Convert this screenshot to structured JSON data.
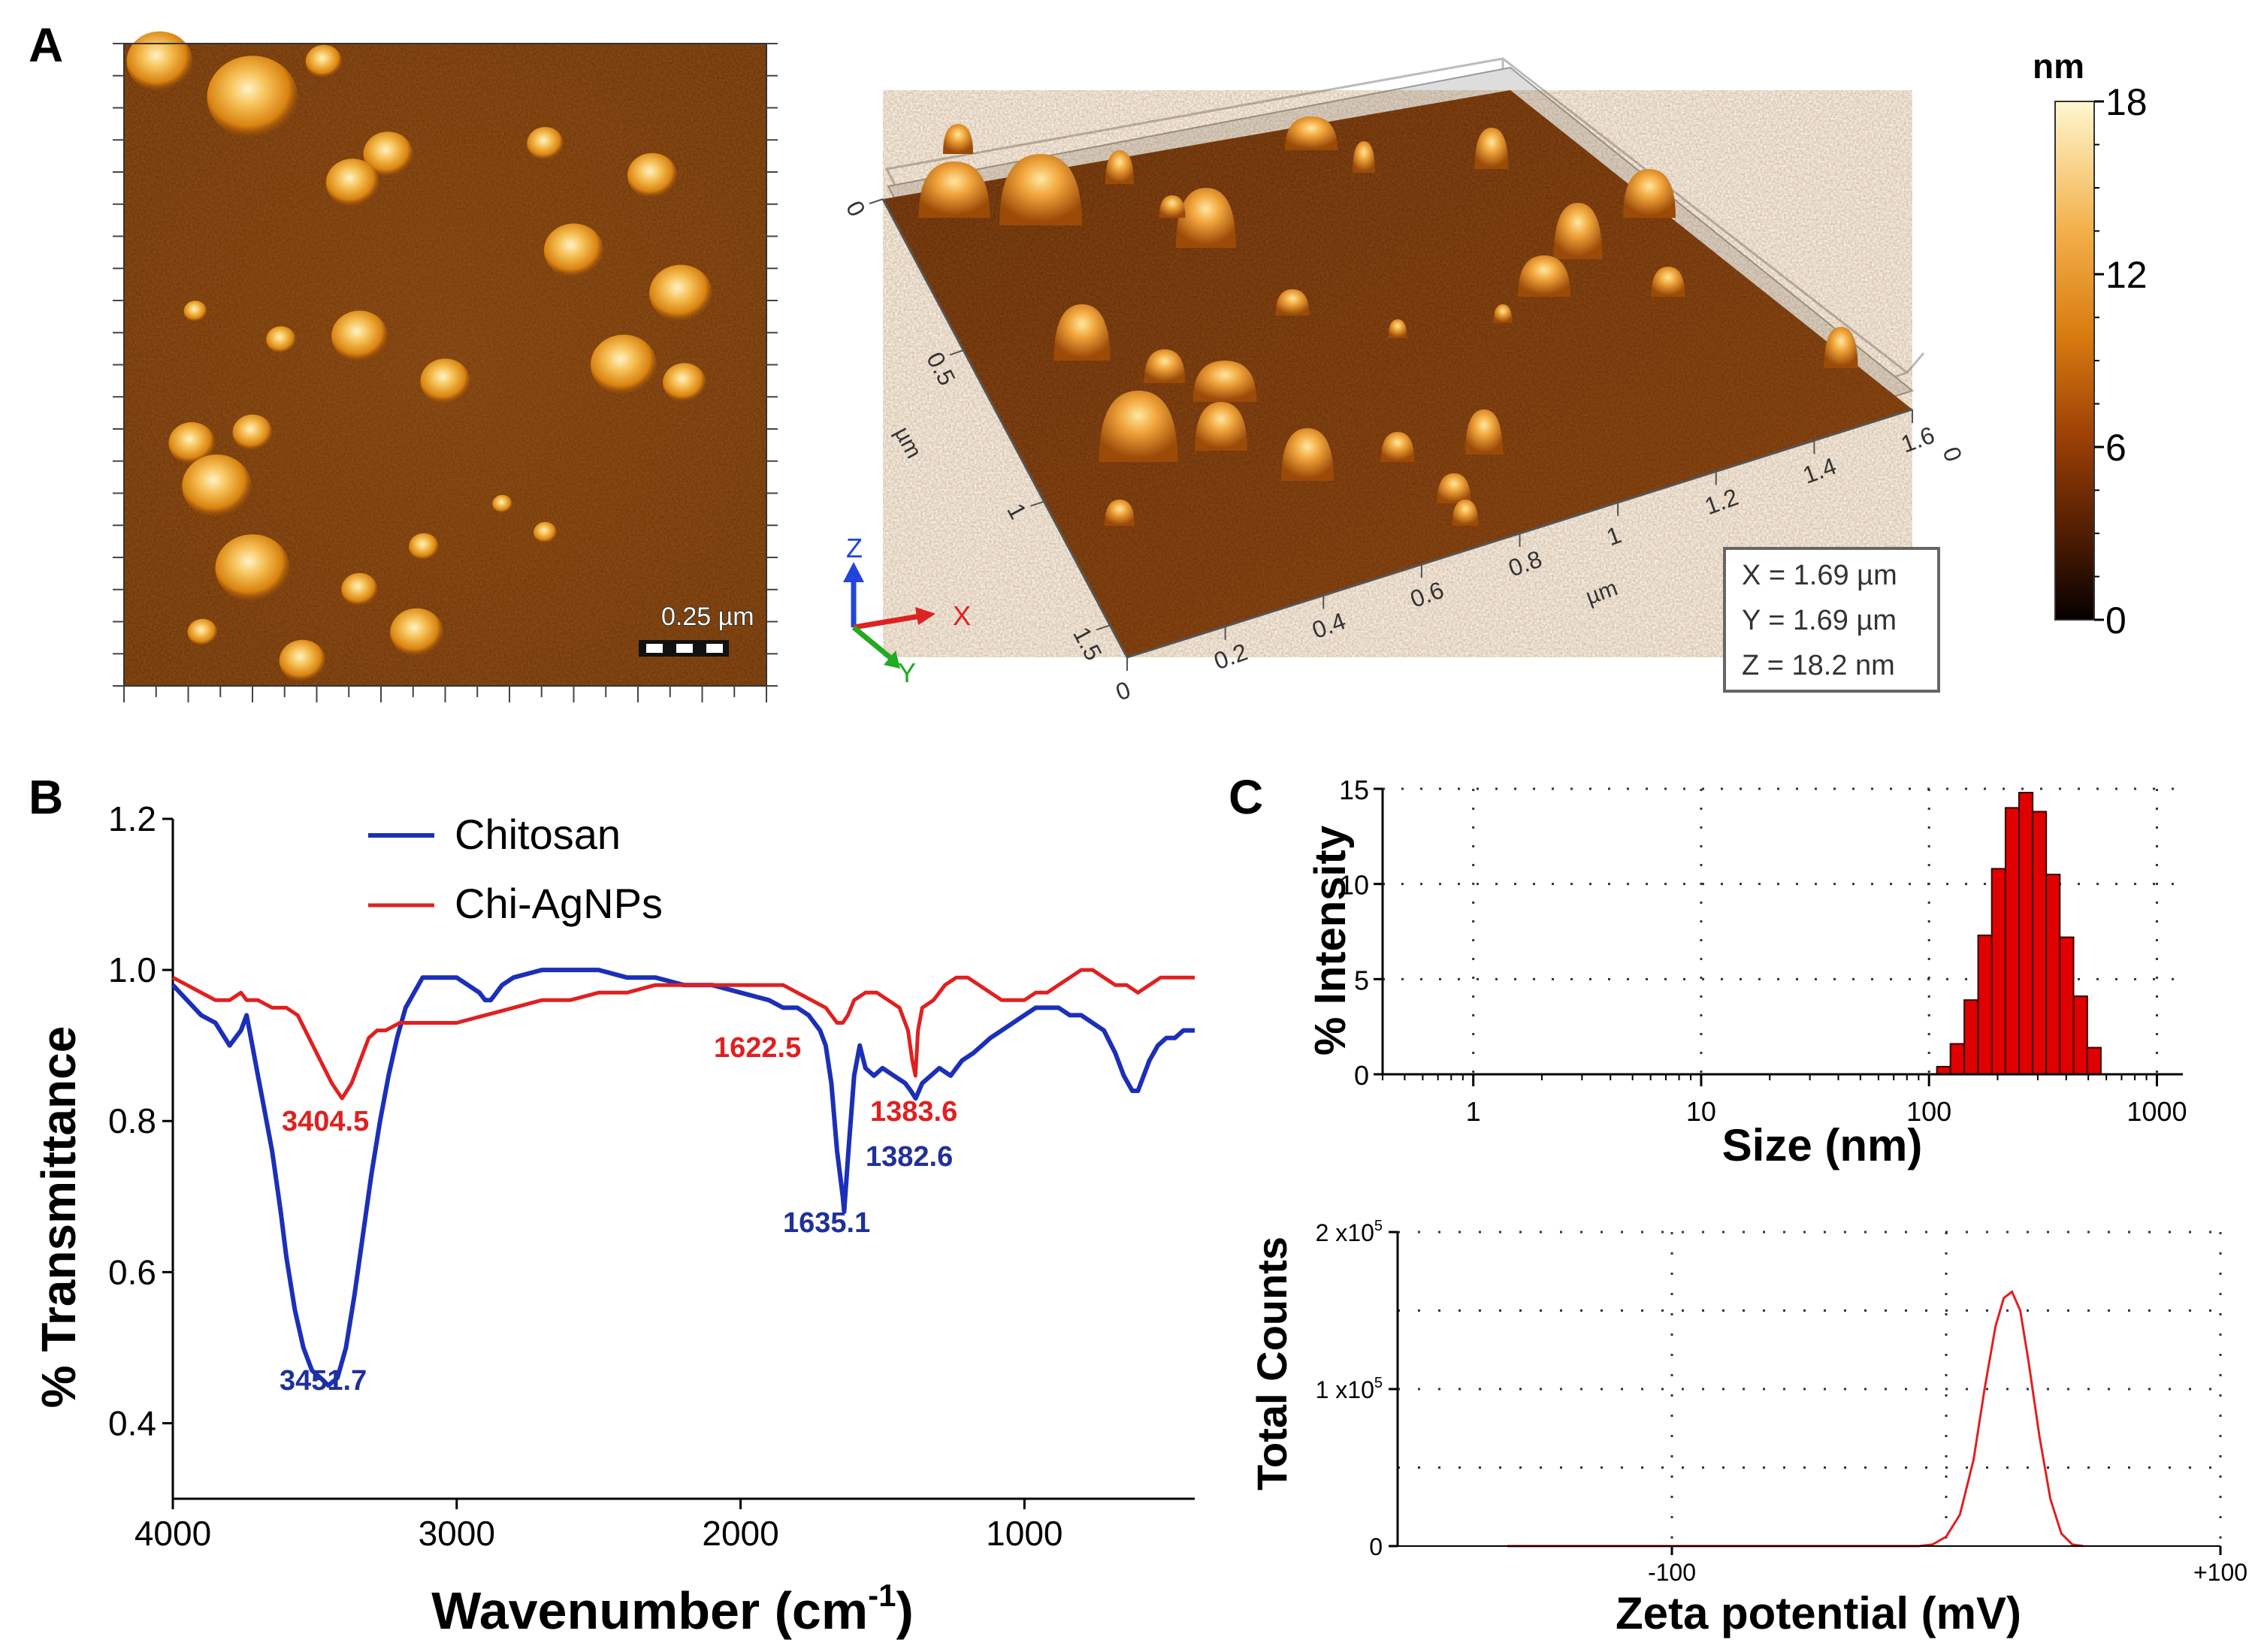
{
  "panels": {
    "a": "A",
    "b": "B",
    "c": "C"
  },
  "afm": {
    "scale_label": "0.25 µm",
    "surface_x_unit": "µm",
    "surface_y_unit": "µm",
    "x_ticks": [
      "0",
      "0.2",
      "0.4",
      "0.6",
      "0.8",
      "1",
      "1.2",
      "1.4",
      "1.6"
    ],
    "y_ticks": [
      "0",
      "0.5",
      "1",
      "1.5"
    ],
    "z_end_tick": "0",
    "axes_labels": [
      "Z",
      "X",
      "Y"
    ],
    "dims": [
      "X = 1.69 µm",
      "Y = 1.69 µm",
      "Z = 18.2 nm"
    ],
    "colorbar": {
      "unit": "nm",
      "ticks": [
        "0",
        "6",
        "12",
        "18"
      ],
      "range": [
        0,
        18
      ]
    }
  },
  "ftir": {
    "type": "line",
    "xlabel_main": "Wavenumber (cm",
    "xlabel_sup": "-1",
    "xlabel_end": ")",
    "ylabel": "% Transmittance",
    "xlim": [
      4000,
      400
    ],
    "ylim": [
      0.3,
      1.2
    ],
    "x_ticks": [
      "4000",
      "3000",
      "2000",
      "1000"
    ],
    "y_ticks": [
      "0.4",
      "0.6",
      "0.8",
      "1.0",
      "1.2"
    ],
    "legend": [
      "Chitosan",
      "Chi-AgNPs"
    ],
    "peak_labels": {
      "chitosan": [
        "3451.7",
        "1635.1",
        "1382.6"
      ],
      "agnp": [
        "3404.5",
        "1622.5",
        "1383.6"
      ]
    },
    "colors": {
      "chitosan": "#1c2fb8",
      "agnp": "#e02020",
      "label_blue": "#20309a",
      "label_red": "#e02020"
    }
  },
  "chart_data": [
    {
      "type": "line",
      "title": "",
      "xlabel": "Wavenumber (cm-1)",
      "ylabel": "% Transmittance",
      "xlim": [
        4000,
        400
      ],
      "ylim": [
        0.3,
        1.2
      ],
      "series": [
        {
          "name": "Chitosan",
          "x": [
            4000,
            3950,
            3900,
            3850,
            3800,
            3760,
            3740,
            3720,
            3700,
            3680,
            3650,
            3620,
            3600,
            3570,
            3540,
            3510,
            3480,
            3452,
            3420,
            3390,
            3360,
            3330,
            3300,
            3270,
            3240,
            3210,
            3180,
            3150,
            3120,
            3080,
            3040,
            3000,
            2960,
            2920,
            2900,
            2880,
            2860,
            2840,
            2800,
            2700,
            2600,
            2500,
            2400,
            2300,
            2200,
            2100,
            2000,
            1900,
            1850,
            1800,
            1760,
            1720,
            1700,
            1680,
            1660,
            1640,
            1635,
            1620,
            1600,
            1580,
            1560,
            1530,
            1500,
            1460,
            1420,
            1400,
            1383,
            1360,
            1330,
            1300,
            1260,
            1220,
            1180,
            1150,
            1120,
            1080,
            1040,
            1000,
            960,
            920,
            880,
            840,
            800,
            760,
            720,
            680,
            650,
            620,
            600,
            580,
            560,
            530,
            500,
            470,
            440,
            420,
            400
          ],
          "values": [
            0.98,
            0.96,
            0.94,
            0.93,
            0.9,
            0.92,
            0.94,
            0.9,
            0.86,
            0.82,
            0.76,
            0.68,
            0.62,
            0.55,
            0.5,
            0.47,
            0.46,
            0.45,
            0.46,
            0.5,
            0.57,
            0.65,
            0.73,
            0.8,
            0.86,
            0.91,
            0.95,
            0.97,
            0.99,
            0.99,
            0.99,
            0.99,
            0.98,
            0.97,
            0.96,
            0.96,
            0.97,
            0.98,
            0.99,
            1.0,
            1.0,
            1.0,
            0.99,
            0.99,
            0.98,
            0.98,
            0.97,
            0.96,
            0.95,
            0.95,
            0.94,
            0.92,
            0.9,
            0.85,
            0.76,
            0.7,
            0.68,
            0.76,
            0.86,
            0.9,
            0.87,
            0.86,
            0.87,
            0.86,
            0.85,
            0.84,
            0.83,
            0.85,
            0.86,
            0.87,
            0.86,
            0.88,
            0.89,
            0.9,
            0.91,
            0.92,
            0.93,
            0.94,
            0.95,
            0.95,
            0.95,
            0.94,
            0.94,
            0.93,
            0.92,
            0.89,
            0.86,
            0.84,
            0.84,
            0.86,
            0.88,
            0.9,
            0.91,
            0.91,
            0.92,
            0.92,
            0.92
          ]
        },
        {
          "name": "Chi-AgNPs",
          "x": [
            4000,
            3950,
            3900,
            3850,
            3800,
            3760,
            3740,
            3700,
            3650,
            3600,
            3560,
            3520,
            3480,
            3440,
            3404,
            3370,
            3340,
            3310,
            3280,
            3250,
            3200,
            3150,
            3100,
            3000,
            2900,
            2800,
            2700,
            2600,
            2500,
            2400,
            2300,
            2200,
            2100,
            2000,
            1900,
            1850,
            1800,
            1750,
            1700,
            1660,
            1640,
            1622,
            1600,
            1560,
            1520,
            1480,
            1440,
            1410,
            1395,
            1384,
            1375,
            1360,
            1320,
            1280,
            1240,
            1200,
            1160,
            1120,
            1080,
            1040,
            1000,
            960,
            920,
            880,
            840,
            800,
            760,
            720,
            680,
            640,
            600,
            560,
            520,
            480,
            440,
            400
          ],
          "values": [
            0.99,
            0.98,
            0.97,
            0.96,
            0.96,
            0.97,
            0.96,
            0.96,
            0.95,
            0.95,
            0.94,
            0.91,
            0.88,
            0.85,
            0.83,
            0.85,
            0.88,
            0.91,
            0.92,
            0.92,
            0.93,
            0.93,
            0.93,
            0.93,
            0.94,
            0.95,
            0.96,
            0.96,
            0.97,
            0.97,
            0.98,
            0.98,
            0.98,
            0.98,
            0.98,
            0.98,
            0.97,
            0.96,
            0.95,
            0.93,
            0.93,
            0.94,
            0.96,
            0.97,
            0.97,
            0.96,
            0.95,
            0.92,
            0.88,
            0.86,
            0.92,
            0.95,
            0.96,
            0.98,
            0.99,
            0.99,
            0.98,
            0.97,
            0.96,
            0.96,
            0.96,
            0.97,
            0.97,
            0.98,
            0.99,
            1.0,
            1.0,
            0.99,
            0.98,
            0.98,
            0.97,
            0.98,
            0.99,
            0.99,
            0.99,
            0.99
          ]
        }
      ],
      "annotations": [
        "3451.7",
        "1635.1",
        "1382.6",
        "3404.5",
        "1622.5",
        "1383.6"
      ]
    },
    {
      "type": "bar",
      "title": "",
      "xlabel": "Size (nm)",
      "ylabel": "% Intensity",
      "xscale": "log",
      "xlim": [
        0.4,
        1300
      ],
      "ylim": [
        0,
        15
      ],
      "x_ticks": [
        "1",
        "10",
        "100",
        "1000"
      ],
      "y_ticks": [
        "0",
        "5",
        "10",
        "15"
      ],
      "x": [
        116,
        133,
        153,
        176,
        202,
        232,
        266,
        305,
        350,
        402,
        462,
        530
      ],
      "values": [
        0.4,
        1.6,
        3.9,
        7.3,
        10.8,
        14.0,
        14.8,
        13.8,
        10.5,
        7.2,
        4.1,
        1.4
      ]
    },
    {
      "type": "line",
      "title": "",
      "xlabel": "Zeta potential (mV)",
      "ylabel": "Total Counts",
      "xlim": [
        -200,
        100
      ],
      "ylim": [
        0,
        200000
      ],
      "x_ticks": [
        "-100",
        "+100"
      ],
      "y_ticks": [
        "0",
        "1 x10^5",
        "2 x10^5"
      ],
      "series": [
        {
          "name": "",
          "x": [
            -160,
            -100,
            -40,
            -10,
            -5,
            0,
            5,
            10,
            14,
            18,
            21,
            24,
            27,
            30,
            34,
            38,
            42,
            46,
            50
          ],
          "values": [
            0,
            0,
            0,
            0,
            1000,
            6000,
            20000,
            55000,
            100000,
            140000,
            158000,
            162000,
            150000,
            118000,
            70000,
            30000,
            8000,
            1000,
            0
          ]
        }
      ]
    }
  ],
  "dls": {
    "xlabel": "Size (nm)",
    "ylabel": "% Intensity",
    "x_ticks": [
      "1",
      "10",
      "100",
      "1000"
    ],
    "y_ticks": [
      "0",
      "5",
      "10",
      "15"
    ],
    "bar_color": "#e00000"
  },
  "zeta": {
    "xlabel": "Zeta potential (mV)",
    "ylabel": "Total Counts",
    "x_ticks": [
      "-100",
      "+100"
    ],
    "y_ticks": [
      "0",
      "1 x10",
      "2 x10"
    ],
    "y_exp": "5",
    "line_color": "#e02020"
  }
}
